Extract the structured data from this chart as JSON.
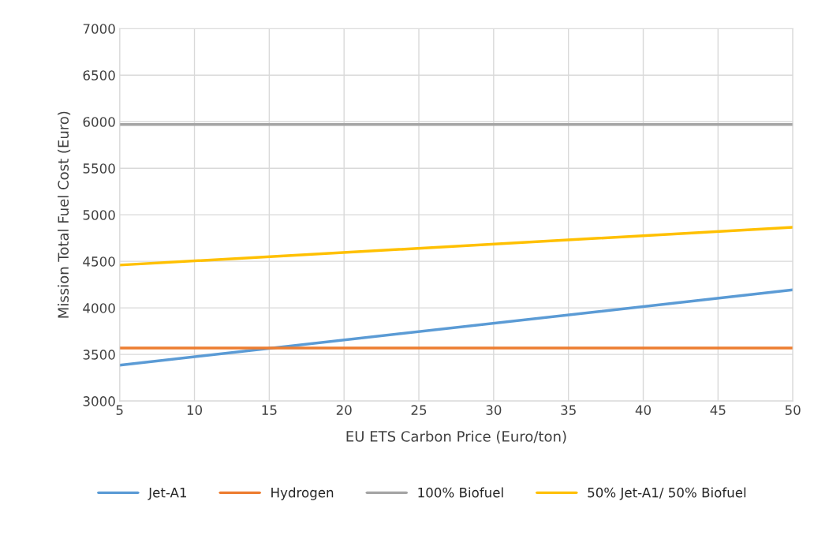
{
  "chart_data": {
    "type": "line",
    "xlabel": "EU ETS Carbon Price (Euro/ton)",
    "ylabel": "Mission Total Fuel Cost (Euro)",
    "x": [
      5,
      50
    ],
    "series": [
      {
        "name": "Jet-A1",
        "color": "#5b9bd5",
        "values": [
          3385,
          4195
        ]
      },
      {
        "name": "Hydrogen",
        "color": "#ed7d31",
        "values": [
          3570,
          3570
        ]
      },
      {
        "name": "100% Biofuel",
        "color": "#a5a5a5",
        "values": [
          5970,
          5970
        ]
      },
      {
        "name": "50% Jet-A1/ 50% Biofuel",
        "color": "#ffc000",
        "values": [
          4460,
          4865
        ]
      }
    ],
    "xlim": [
      5,
      50
    ],
    "xticks": [
      5,
      10,
      15,
      20,
      25,
      30,
      35,
      40,
      45,
      50
    ],
    "ylim": [
      3000,
      7000
    ],
    "yticks": [
      3000,
      3500,
      4000,
      4500,
      5000,
      5500,
      6000,
      6500,
      7000
    ],
    "grid": true,
    "legend": "bottom",
    "marker": "none",
    "line_style": "solid"
  }
}
